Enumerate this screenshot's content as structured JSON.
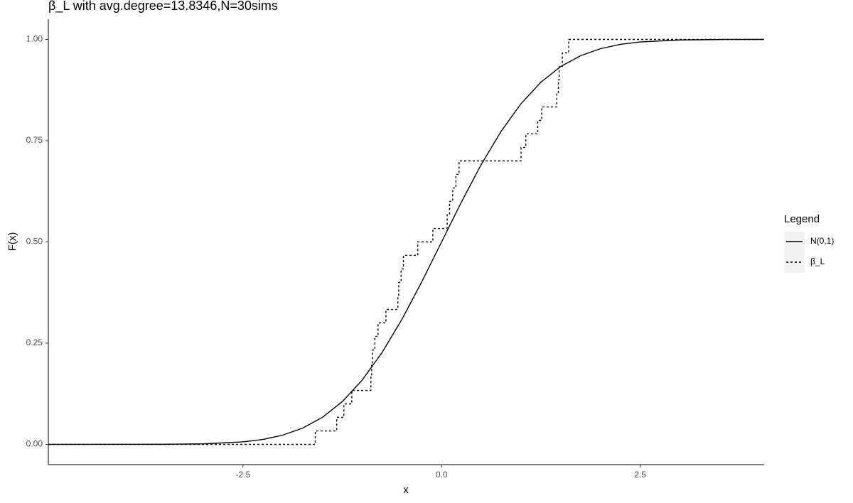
{
  "chart_data": {
    "type": "line",
    "title": "β_L with avg.degree=13.8346,N=30sims",
    "x_label": "x",
    "y_label": "F(x)",
    "legend_title": "Legend",
    "legend_position": "right",
    "xlim": [
      -4.95,
      4.06
    ],
    "ylim": [
      -0.05,
      1.05
    ],
    "xticks": [
      -2.5,
      {
        "value": 0,
        "label": "0.0"
      },
      2.5
    ],
    "yticks": [
      {
        "value": 0,
        "label": "0.00"
      },
      {
        "value": 0.25,
        "label": "0.25"
      },
      {
        "value": 0.5,
        "label": "0.50"
      },
      {
        "value": 0.75,
        "label": "0.75"
      },
      {
        "value": 1,
        "label": "1.00"
      }
    ],
    "series": [
      {
        "name": "N(0,1)",
        "color": "#000000",
        "dash": "solid",
        "step": false,
        "x": [
          -4.95,
          -3.5,
          -3,
          -2.5,
          -2.25,
          -2,
          -1.75,
          -1.5,
          -1.25,
          -1,
          -0.75,
          -0.5,
          -0.25,
          0,
          0.25,
          0.5,
          0.75,
          1,
          1.25,
          1.5,
          1.75,
          2,
          2.25,
          2.5,
          3,
          3.5,
          4.06
        ],
        "values": [
          0,
          0.0002,
          0.0013,
          0.0062,
          0.0122,
          0.0228,
          0.0401,
          0.0668,
          0.1056,
          0.1587,
          0.2266,
          0.3085,
          0.4013,
          0.5,
          0.5987,
          0.6915,
          0.7734,
          0.8413,
          0.8944,
          0.9332,
          0.9599,
          0.9772,
          0.9878,
          0.9938,
          0.9987,
          0.9998,
          1
        ]
      },
      {
        "name": "β_L",
        "color": "#000000",
        "dash": "dotted",
        "step": true,
        "x": [
          -4.95,
          -1.59,
          -1.32,
          -1.23,
          -1.13,
          -0.89,
          -0.88,
          -0.87,
          -0.84,
          -0.8,
          -0.7,
          -0.55,
          -0.54,
          -0.51,
          -0.48,
          -0.3,
          -0.11,
          0.07,
          0.1,
          0.14,
          0.18,
          0.22,
          1.0,
          1.06,
          1.21,
          1.26,
          1.45,
          1.47,
          1.48,
          1.52,
          1.6,
          4.06
        ],
        "values": [
          0,
          0.0333,
          0.0667,
          0.1,
          0.1333,
          0.1667,
          0.2,
          0.2333,
          0.2667,
          0.3,
          0.3333,
          0.3667,
          0.4,
          0.4333,
          0.4667,
          0.5,
          0.5333,
          0.5667,
          0.6,
          0.6333,
          0.6667,
          0.7,
          0.7333,
          0.7667,
          0.8,
          0.8333,
          0.8667,
          0.9,
          0.9333,
          0.9667,
          1,
          1
        ]
      }
    ]
  }
}
